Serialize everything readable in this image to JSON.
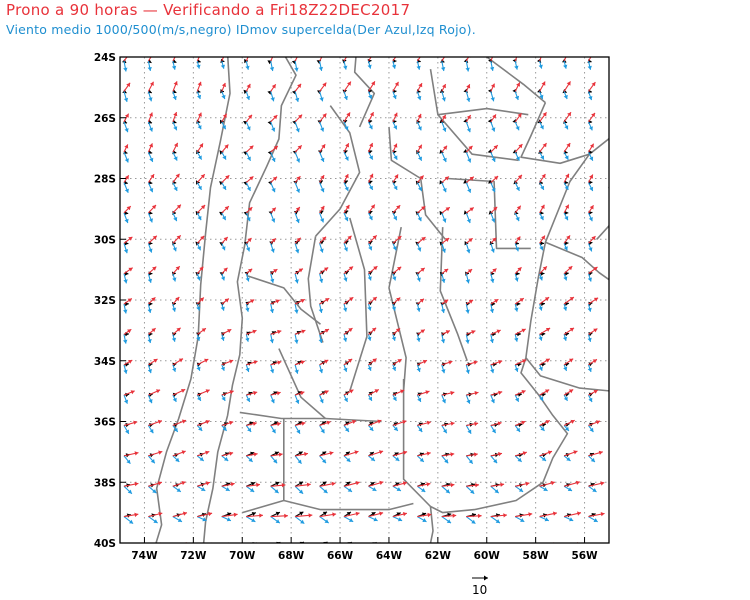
{
  "title": "Prono a 90 horas — Verificando a Fri18Z22DEC2017",
  "subtitle": "Viento medio 1000/500(m/s,negro) IDmov supercelda(Der Azul,Izq Rojo).",
  "map": {
    "lon_range": [
      -75,
      -55
    ],
    "lat_range": [
      -40,
      -24
    ],
    "x_tick_labels": [
      "74W",
      "72W",
      "70W",
      "68W",
      "66W",
      "64W",
      "62W",
      "60W",
      "58W",
      "56W"
    ],
    "y_tick_labels": [
      "24S",
      "26S",
      "28S",
      "30S",
      "32S",
      "34S",
      "36S",
      "38S",
      "40S"
    ],
    "grid": "dotted",
    "vector_colors": {
      "mean_wind": "#000000",
      "right_mover": "#1f9be0",
      "left_mover": "#e8323a",
      "borders": "#808080"
    },
    "reference_vector_label": "10"
  }
}
